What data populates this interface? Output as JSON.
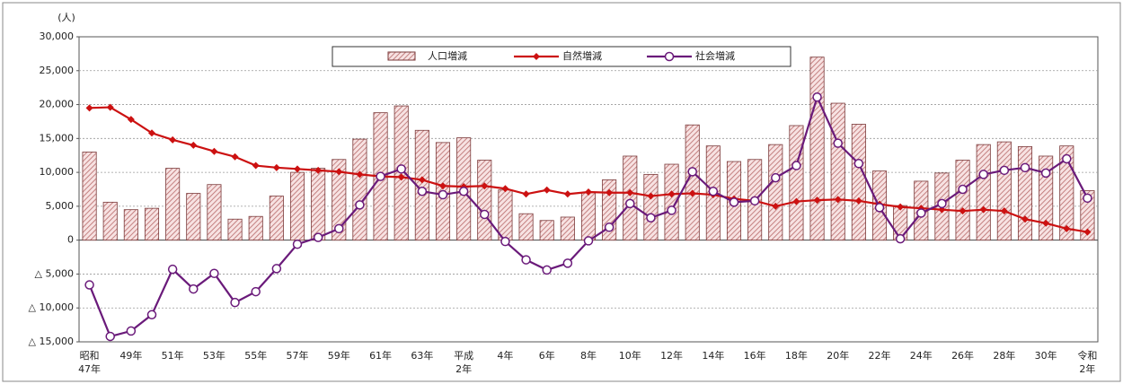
{
  "chart_data": {
    "type": "bar",
    "y_axis_label": "(人)",
    "categories": [
      "昭和\n47年",
      null,
      "49年",
      null,
      "51年",
      null,
      "53年",
      null,
      "55年",
      null,
      "57年",
      null,
      "59年",
      null,
      "61年",
      null,
      "63年",
      null,
      "平成\n2年",
      null,
      "4年",
      null,
      "6年",
      null,
      "8年",
      null,
      "10年",
      null,
      "12年",
      null,
      "14年",
      null,
      "16年",
      null,
      "18年",
      null,
      "20年",
      null,
      "22年",
      null,
      "24年",
      null,
      "26年",
      null,
      "28年",
      null,
      "30年",
      null,
      "令和\n2年"
    ],
    "series": [
      {
        "name": "人口増減",
        "type": "bar",
        "color": "#c98a8a",
        "values": [
          13000,
          5600,
          4500,
          4700,
          10600,
          6900,
          8200,
          3100,
          3500,
          6500,
          10000,
          10600,
          11900,
          14900,
          18800,
          19800,
          16200,
          14400,
          15100,
          11800,
          7400,
          3900,
          2900,
          3400,
          7000,
          8900,
          12400,
          9700,
          11200,
          17000,
          13900,
          11600,
          11900,
          14100,
          16900,
          27000,
          20200,
          17100,
          10200,
          5100,
          8700,
          9900,
          11800,
          14100,
          14500,
          13800,
          12400,
          13900,
          7300
        ]
      },
      {
        "name": "自然増減",
        "type": "line",
        "color": "#cc1111",
        "values": [
          19500,
          19600,
          17800,
          15800,
          14800,
          14000,
          13100,
          12300,
          11000,
          10700,
          10500,
          10300,
          10100,
          9700,
          9400,
          9300,
          8900,
          8000,
          7900,
          8000,
          7600,
          6800,
          7400,
          6800,
          7100,
          7000,
          7000,
          6500,
          6800,
          6900,
          6700,
          6100,
          5800,
          5000,
          5700,
          5900,
          6000,
          5800,
          5300,
          4900,
          4700,
          4500,
          4300,
          4500,
          4300,
          3100,
          2500,
          1700,
          1200
        ]
      },
      {
        "name": "社会増減",
        "type": "line",
        "color": "#6a1a7a",
        "values": [
          -6600,
          -14200,
          -13400,
          -11000,
          -4300,
          -7200,
          -4900,
          -9200,
          -7600,
          -4200,
          -600,
          400,
          1700,
          5200,
          9400,
          10500,
          7200,
          6700,
          7200,
          3800,
          -200,
          -2900,
          -4400,
          -3400,
          -100,
          1900,
          5400,
          3300,
          4400,
          10100,
          7200,
          5600,
          5800,
          9200,
          11000,
          21100,
          14300,
          11300,
          4800,
          200,
          4000,
          5400,
          7500,
          9700,
          10300,
          10700,
          9900,
          12000,
          6200
        ]
      }
    ],
    "ylim": [
      -15000,
      30000
    ],
    "yticks": [
      {
        "value": -15000,
        "label": "△ 15,000"
      },
      {
        "value": -10000,
        "label": "△ 10,000"
      },
      {
        "value": -5000,
        "label": "△ 5,000"
      },
      0,
      {
        "value": 5000,
        "label": "5,000"
      },
      {
        "value": 10000,
        "label": "10,000"
      },
      {
        "value": 15000,
        "label": "15,000"
      },
      {
        "value": 20000,
        "label": "20,000"
      },
      {
        "value": 25000,
        "label": "25,000"
      },
      {
        "value": 30000,
        "label": "30,000"
      }
    ],
    "grid": true
  }
}
